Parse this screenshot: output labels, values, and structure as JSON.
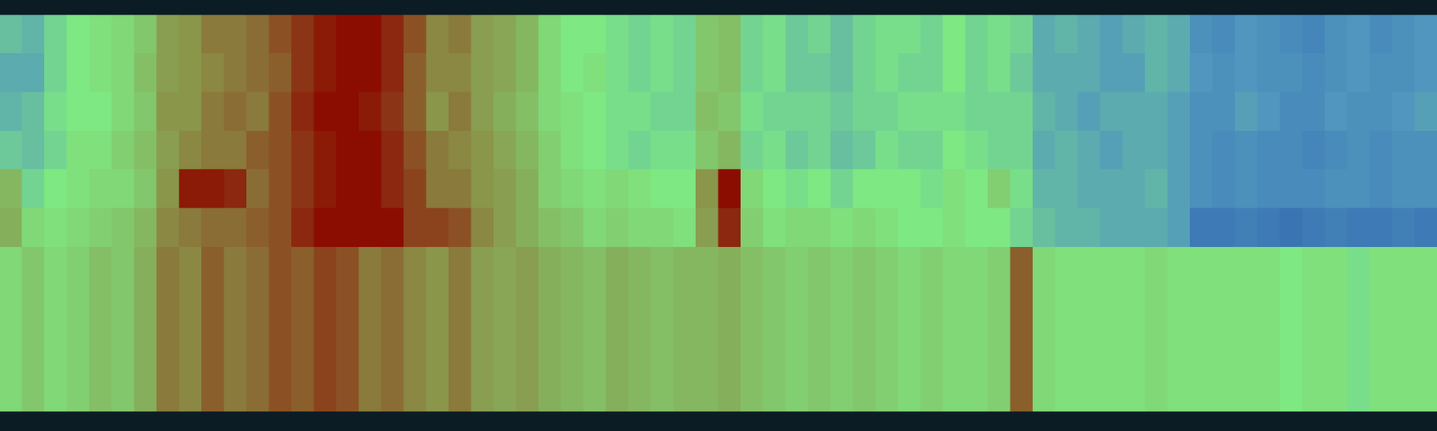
{
  "chart_data": [
    {
      "type": "heatmap",
      "tick_labels": false,
      "zlim": [
        -1,
        1
      ],
      "values": [
        [
          -0.2,
          -0.25,
          -0.1,
          0.0,
          0.05,
          0.1,
          0.2,
          0.45,
          0.5,
          0.6,
          0.6,
          0.65,
          0.75,
          0.85,
          0.95,
          1.0,
          1.0,
          0.9,
          0.75,
          0.55,
          0.6,
          0.45,
          0.4,
          0.3,
          0.1,
          0.0,
          0.0,
          -0.05,
          -0.1,
          -0.05,
          -0.1,
          0.2,
          0.25,
          -0.1,
          -0.05,
          -0.15,
          -0.1,
          -0.2,
          -0.1,
          -0.05,
          -0.05,
          -0.1,
          0.0,
          -0.1,
          -0.05,
          -0.1,
          -0.3,
          -0.25,
          -0.3,
          -0.35,
          -0.3,
          -0.25,
          -0.3,
          -0.45,
          -0.5,
          -0.4,
          -0.45,
          -0.5,
          -0.55,
          -0.45,
          -0.4,
          -0.5,
          -0.45,
          -0.4
        ],
        [
          -0.3,
          -0.3,
          -0.1,
          0.0,
          0.05,
          0.1,
          0.25,
          0.45,
          0.5,
          0.55,
          0.6,
          0.65,
          0.7,
          0.85,
          0.95,
          1.0,
          1.0,
          0.9,
          0.7,
          0.55,
          0.55,
          0.45,
          0.4,
          0.3,
          0.1,
          0.0,
          0.05,
          -0.05,
          -0.1,
          -0.05,
          -0.1,
          0.2,
          0.25,
          -0.1,
          -0.05,
          -0.15,
          -0.15,
          -0.2,
          -0.1,
          -0.05,
          -0.1,
          -0.1,
          0.0,
          -0.1,
          -0.05,
          -0.15,
          -0.3,
          -0.3,
          -0.3,
          -0.35,
          -0.35,
          -0.25,
          -0.3,
          -0.4,
          -0.45,
          -0.4,
          -0.45,
          -0.45,
          -0.5,
          -0.45,
          -0.4,
          -0.45,
          -0.45,
          -0.4
        ],
        [
          -0.25,
          -0.2,
          -0.05,
          0.0,
          0.0,
          0.1,
          0.2,
          0.5,
          0.5,
          0.6,
          0.65,
          0.6,
          0.75,
          0.9,
          1.0,
          1.0,
          0.95,
          0.85,
          0.7,
          0.5,
          0.6,
          0.45,
          0.35,
          0.25,
          0.1,
          0.05,
          0.0,
          -0.05,
          -0.05,
          -0.1,
          -0.1,
          0.25,
          0.2,
          -0.05,
          -0.1,
          -0.1,
          -0.1,
          -0.15,
          -0.1,
          -0.1,
          -0.05,
          -0.05,
          -0.05,
          -0.1,
          -0.1,
          -0.1,
          -0.25,
          -0.3,
          -0.35,
          -0.3,
          -0.3,
          -0.3,
          -0.35,
          -0.45,
          -0.45,
          -0.35,
          -0.4,
          -0.5,
          -0.5,
          -0.4,
          -0.45,
          -0.45,
          -0.4,
          -0.35
        ],
        [
          -0.15,
          -0.2,
          -0.1,
          0.05,
          0.05,
          0.15,
          0.25,
          0.45,
          0.55,
          0.6,
          0.6,
          0.7,
          0.75,
          0.85,
          0.95,
          1.0,
          1.0,
          0.9,
          0.75,
          0.6,
          0.55,
          0.5,
          0.4,
          0.3,
          0.15,
          0.05,
          0.0,
          -0.05,
          -0.1,
          -0.05,
          -0.05,
          0.2,
          0.3,
          -0.1,
          -0.05,
          -0.15,
          -0.1,
          -0.2,
          -0.15,
          -0.05,
          -0.1,
          -0.1,
          0.0,
          -0.05,
          -0.1,
          -0.1,
          -0.3,
          -0.25,
          -0.3,
          -0.35,
          -0.3,
          -0.3,
          -0.35,
          -0.45,
          -0.5,
          -0.45,
          -0.5,
          -0.5,
          -0.55,
          -0.5,
          -0.45,
          -0.5,
          -0.45,
          -0.45
        ],
        [
          0.3,
          -0.1,
          0.0,
          0.05,
          0.1,
          0.1,
          0.2,
          0.5,
          0.95,
          0.95,
          0.9,
          0.65,
          0.75,
          0.85,
          0.95,
          1.0,
          1.0,
          0.9,
          0.8,
          0.6,
          0.6,
          0.5,
          0.45,
          0.35,
          0.15,
          0.1,
          0.05,
          0.1,
          0.05,
          0.0,
          0.0,
          0.5,
          1.0,
          0.1,
          0.0,
          -0.05,
          0.0,
          -0.1,
          0.0,
          0.0,
          0.0,
          -0.05,
          0.05,
          0.0,
          0.15,
          -0.05,
          -0.25,
          -0.25,
          -0.3,
          -0.3,
          -0.3,
          -0.25,
          -0.35,
          -0.45,
          -0.5,
          -0.45,
          -0.5,
          -0.5,
          -0.5,
          -0.45,
          -0.45,
          -0.5,
          -0.45,
          -0.45
        ],
        [
          0.35,
          0.1,
          0.05,
          0.1,
          0.15,
          0.2,
          0.3,
          0.55,
          0.6,
          0.65,
          0.65,
          0.7,
          0.75,
          0.9,
          1.0,
          1.0,
          1.0,
          1.0,
          0.8,
          0.8,
          0.75,
          0.55,
          0.45,
          0.35,
          0.25,
          0.2,
          0.1,
          0.15,
          0.1,
          0.1,
          0.05,
          0.45,
          0.9,
          0.15,
          0.05,
          0.1,
          0.1,
          0.05,
          0.1,
          0.05,
          0.0,
          0.0,
          0.05,
          0.0,
          0.0,
          -0.1,
          -0.2,
          -0.25,
          -0.25,
          -0.3,
          -0.3,
          -0.3,
          -0.35,
          -0.65,
          -0.65,
          -0.6,
          -0.65,
          -0.7,
          -0.65,
          -0.6,
          -0.65,
          -0.65,
          -0.6,
          -0.65
        ]
      ]
    },
    {
      "type": "heatmap",
      "tick_labels": false,
      "zlim": [
        -1,
        1
      ],
      "values": [
        [
          0.1,
          0.2,
          0.1,
          0.15,
          0.25,
          0.2,
          0.35,
          0.6,
          0.55,
          0.7,
          0.6,
          0.65,
          0.75,
          0.7,
          0.8,
          0.75,
          0.6,
          0.65,
          0.55,
          0.5,
          0.6,
          0.45,
          0.4,
          0.45,
          0.35,
          0.3,
          0.25,
          0.35,
          0.3,
          0.25,
          0.3,
          0.3,
          0.35,
          0.25,
          0.2,
          0.15,
          0.2,
          0.15,
          0.2,
          0.15,
          0.1,
          0.15,
          0.1,
          0.1,
          0.15,
          0.7,
          0.1,
          0.05,
          0.05,
          0.05,
          0.05,
          0.1,
          0.05,
          0.05,
          0.05,
          0.05,
          0.05,
          0.0,
          0.05,
          0.05,
          -0.05,
          0.05,
          0.05,
          0.05
        ]
      ]
    }
  ]
}
